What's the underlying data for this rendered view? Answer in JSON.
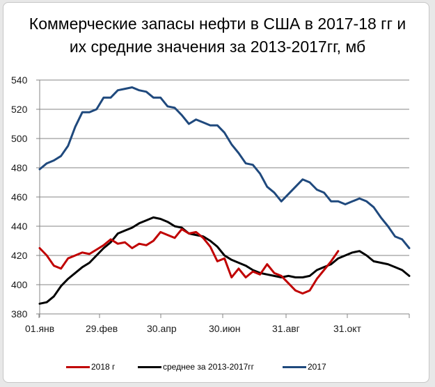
{
  "chart_data": {
    "type": "line",
    "title": "Коммерческие запасы нефти в США в 2017-18 гг и их средние значения за  2013-2017гг, мб",
    "title_lines": [
      "Коммерческие запасы нефти в США в 2017-18 гг и",
      "их средние значения за  2013-2017гг, мб"
    ],
    "xlabel": "",
    "ylabel": "",
    "ylim": [
      380,
      540
    ],
    "yticks": [
      380,
      400,
      420,
      440,
      460,
      480,
      500,
      520,
      540
    ],
    "xtick_labels": [
      "01.янв",
      "29.фев",
      "30.апр",
      "30.июн",
      "31.авг",
      "31.окт",
      ""
    ],
    "x_unit": "week of year",
    "grid": true,
    "legend_position": "bottom",
    "series": [
      {
        "name": "2018 г",
        "color": "#c00000",
        "values": [
          425,
          420,
          413,
          411,
          418,
          420,
          422,
          421,
          424,
          427,
          431,
          428,
          429,
          425,
          428,
          427,
          430,
          436,
          434,
          432,
          438,
          435,
          436,
          432,
          426,
          416,
          418,
          405,
          411,
          405,
          409,
          407,
          414,
          408,
          406,
          401,
          396,
          394,
          396,
          404,
          410,
          416,
          423
        ]
      },
      {
        "name": "среднее за 2013-2017гг",
        "color": "#000000",
        "values": [
          387,
          388,
          392,
          399,
          404,
          408,
          412,
          415,
          420,
          425,
          429,
          435,
          437,
          439,
          442,
          444,
          446,
          445,
          443,
          440,
          439,
          435,
          434,
          433,
          430,
          426,
          420,
          417,
          415,
          413,
          410,
          408,
          407,
          406,
          405,
          406,
          405,
          405,
          406,
          410,
          412,
          414,
          418,
          420,
          422,
          423,
          420,
          416,
          415,
          414,
          412,
          410,
          406
        ]
      },
      {
        "name": "2017",
        "color": "#1f497d",
        "values": [
          479,
          483,
          485,
          488,
          495,
          508,
          518,
          518,
          520,
          528,
          528,
          533,
          534,
          535,
          533,
          532,
          528,
          528,
          522,
          521,
          516,
          510,
          513,
          511,
          509,
          509,
          504,
          496,
          490,
          483,
          482,
          476,
          467,
          463,
          457,
          462,
          467,
          472,
          470,
          465,
          463,
          457,
          457,
          455,
          457,
          459,
          457,
          453,
          446,
          440,
          433,
          431,
          425
        ]
      }
    ]
  },
  "legend": {
    "items": [
      {
        "label": "2018 г",
        "color": "#c00000"
      },
      {
        "label": "среднее за 2013-2017гг",
        "color": "#000000"
      },
      {
        "label": "2017",
        "color": "#1f497d"
      }
    ]
  }
}
